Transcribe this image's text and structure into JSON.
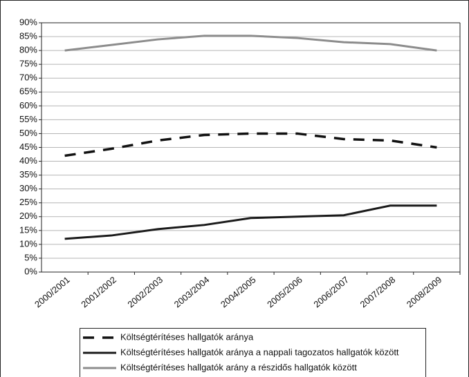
{
  "chart_data": {
    "type": "line",
    "categories": [
      "2000/2001",
      "2001/2002",
      "2002/2003",
      "2003/2004",
      "2004/2005",
      "2005/2006",
      "2006/2007",
      "2007/2008",
      "2008/2009"
    ],
    "series": [
      {
        "name": "Költségtérítéses hallgatók aránya",
        "color": "#111111",
        "dashed": true,
        "values": [
          42,
          44.5,
          47.5,
          49.5,
          50,
          50,
          48,
          47.5,
          45
        ]
      },
      {
        "name": "Költségtérítéses hallgatók aránya a nappali tagozatos hallgatók között",
        "color": "#1a1a1a",
        "dashed": false,
        "values": [
          12,
          13.2,
          15.5,
          17,
          19.5,
          20,
          20.5,
          24,
          24
        ]
      },
      {
        "name": "Költségtérítéses hallgatók arány a részidős hallgatók között",
        "color": "#8c8c8c",
        "dashed": false,
        "values": [
          80,
          82,
          84,
          85.3,
          85.3,
          84.5,
          83,
          82.3,
          80
        ]
      }
    ],
    "ylim": [
      0,
      90
    ],
    "yticks": [
      {
        "value": 0,
        "label": "0%"
      },
      {
        "value": 5,
        "label": "5%"
      },
      {
        "value": 10,
        "label": "10%"
      },
      {
        "value": 15,
        "label": "15%"
      },
      {
        "value": 20,
        "label": "20%"
      },
      {
        "value": 25,
        "label": "25%"
      },
      {
        "value": 30,
        "label": "30%"
      },
      {
        "value": 35,
        "label": "35%"
      },
      {
        "value": 40,
        "label": "40%"
      },
      {
        "value": 45,
        "label": "45%"
      },
      {
        "value": 50,
        "label": "50%"
      },
      {
        "value": 55,
        "label": "55%"
      },
      {
        "value": 60,
        "label": "60%"
      },
      {
        "value": 65,
        "label": "65%"
      },
      {
        "value": 70,
        "label": "70%"
      },
      {
        "value": 75,
        "label": "75%"
      },
      {
        "value": 80,
        "label": "80%"
      },
      {
        "value": 85,
        "label": "85%"
      },
      {
        "value": 90,
        "label": "90%"
      }
    ],
    "grid": true
  }
}
